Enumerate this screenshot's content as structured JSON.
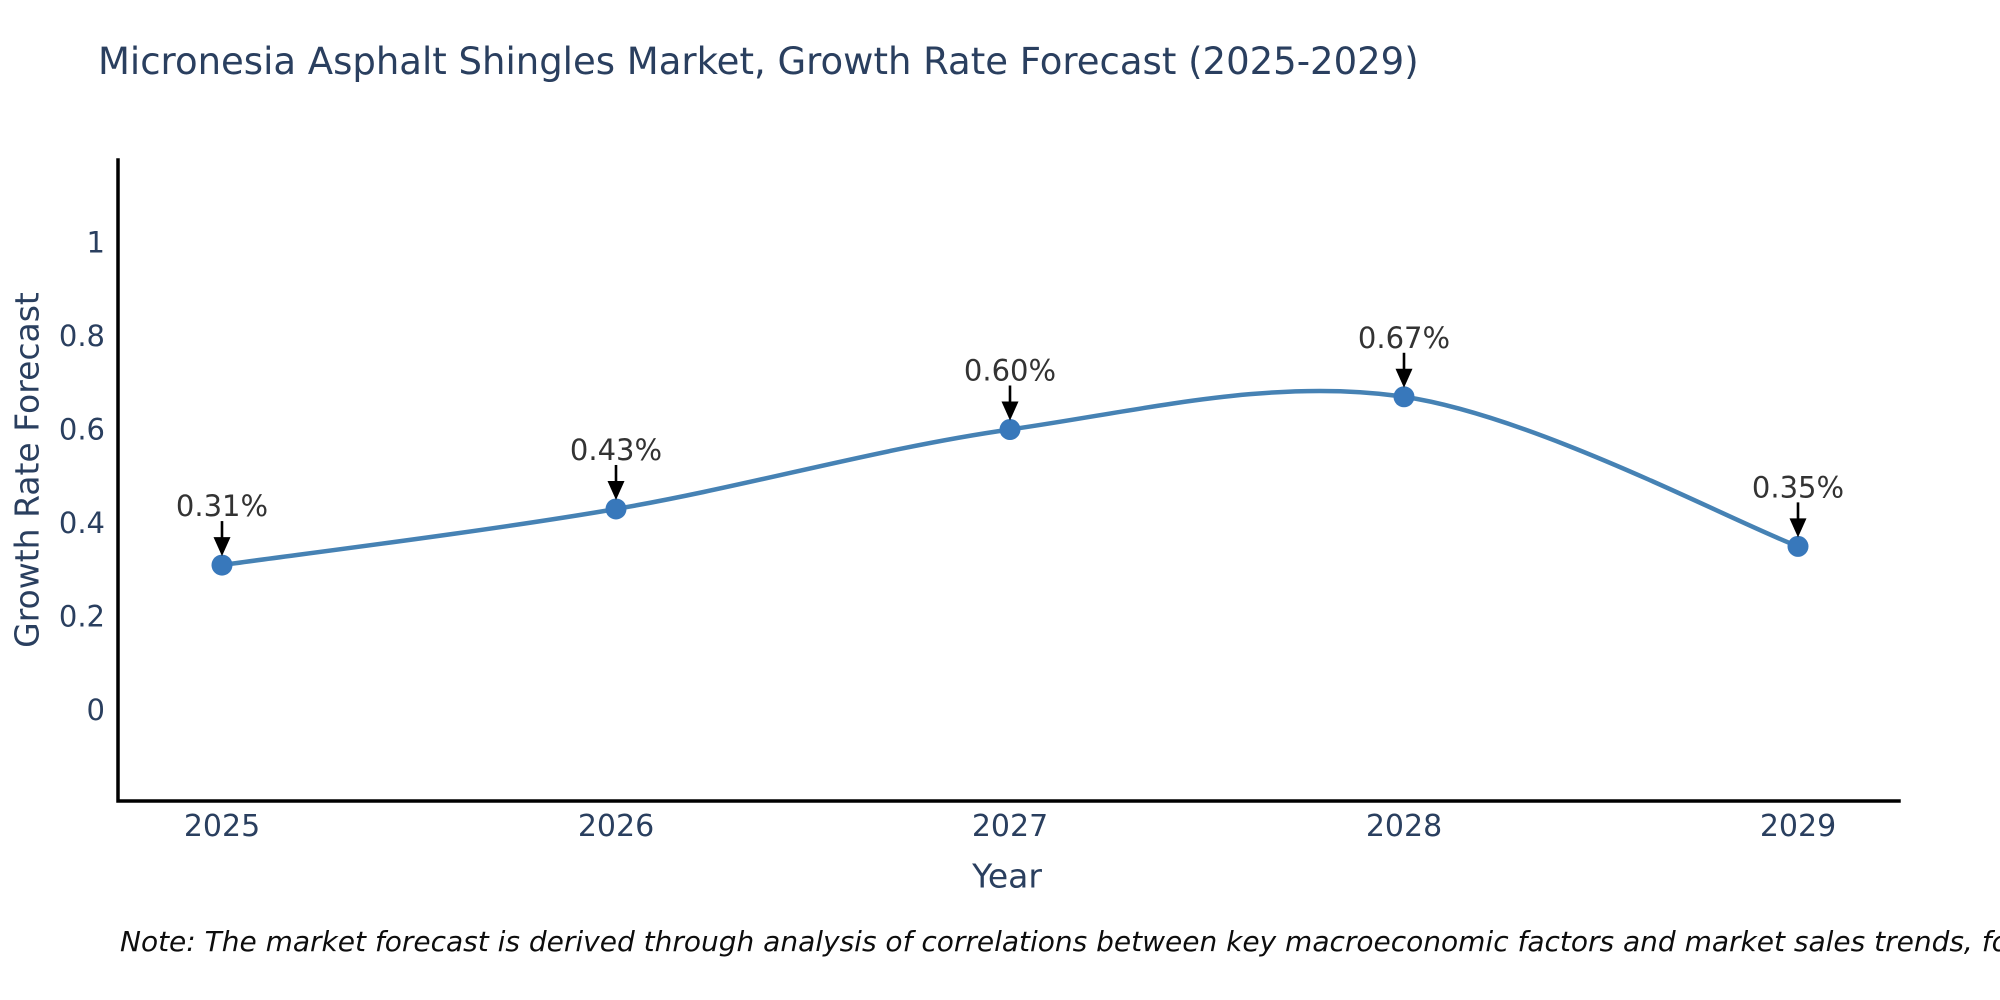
{
  "chart_data": {
    "type": "line",
    "line_shape": "spline",
    "title": "Micronesia Asphalt Shingles Market, Growth Rate Forecast (2025-2029)",
    "xlabel": "Year",
    "ylabel": "Growth Rate Forecast",
    "categories": [
      "2025",
      "2026",
      "2027",
      "2028",
      "2029"
    ],
    "values": [
      0.31,
      0.43,
      0.6,
      0.67,
      0.35
    ],
    "point_labels": [
      "0.31%",
      "0.43%",
      "0.60%",
      "0.67%",
      "0.35%"
    ],
    "yticks": [
      0,
      0.2,
      0.4,
      0.6,
      0.8,
      1
    ],
    "ytick_labels": [
      "0",
      "0.2",
      "0.4",
      "0.6",
      "0.8",
      "1"
    ],
    "ylim": [
      -0.195,
      1.176
    ],
    "grid": false,
    "legend": "none",
    "marker": "circle",
    "annotation_arrows": true
  },
  "note": {
    "text": "Note: The market forecast is derived through analysis of correlations between key macroeconomic factors and market sales trends, followed by predictive modeling to project future sales trends"
  },
  "colors": {
    "line": "#4682b4",
    "marker": "#3878bb",
    "axis": "#000000",
    "axis_text": "#2a3f5f",
    "annotation_text": "#333333",
    "arrow": "#000000",
    "background": "#ffffff"
  }
}
